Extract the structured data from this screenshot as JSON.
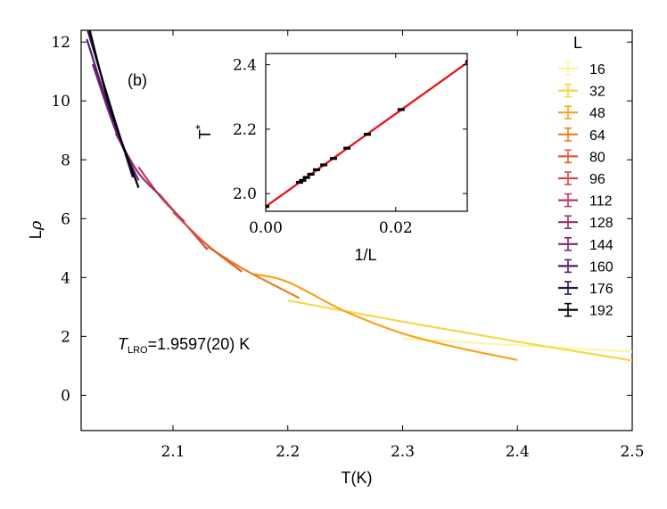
{
  "chart_data": [
    {
      "type": "line",
      "panel_label": "(b)",
      "xlabel": "T(K)",
      "ylabel_base": "L",
      "ylabel_sup": "ρ",
      "xlim": [
        2.02,
        2.5
      ],
      "ylim": [
        -1.2,
        12.4
      ],
      "xticks": [
        2.1,
        2.2,
        2.3,
        2.4,
        2.5
      ],
      "xtick_labels": [
        "2.1",
        "2.2",
        "2.3",
        "2.4",
        "2.5"
      ],
      "yticks": [
        0,
        2,
        4,
        6,
        8,
        10,
        12
      ],
      "ytick_labels": [
        "0",
        "2",
        "4",
        "6",
        "8",
        "10",
        "12"
      ],
      "annotation": {
        "symbol": "T",
        "subscript": "LRO",
        "value": "=1.9597(20) K"
      },
      "legend": {
        "title": "L",
        "position": "right"
      },
      "series": [
        {
          "name": "16",
          "color": "#fcf6a8",
          "x": [
            2.3,
            2.5
          ],
          "y": [
            1.92,
            1.48
          ]
        },
        {
          "name": "32",
          "color": "#f6d84a",
          "x": [
            2.2,
            2.3,
            2.4,
            2.5
          ],
          "y": [
            3.22,
            2.5,
            1.82,
            1.18
          ]
        },
        {
          "name": "48",
          "color": "#f8a31c",
          "x": [
            2.17,
            2.2,
            2.25,
            2.3,
            2.35,
            2.4
          ],
          "y": [
            4.12,
            3.85,
            2.85,
            2.1,
            1.6,
            1.2
          ]
        },
        {
          "name": "64",
          "color": "#ef7e1e",
          "x": [
            2.13,
            2.16,
            2.19,
            2.21
          ],
          "y": [
            5.05,
            4.32,
            3.7,
            3.3
          ]
        },
        {
          "name": "80",
          "color": "#e45c2d",
          "x": [
            2.1,
            2.13,
            2.16
          ],
          "y": [
            6.22,
            5.1,
            4.2
          ]
        },
        {
          "name": "96",
          "color": "#d24a45",
          "x": [
            2.09,
            2.11,
            2.13
          ],
          "y": [
            6.75,
            5.85,
            4.95
          ]
        },
        {
          "name": "112",
          "color": "#b93a5f",
          "x": [
            2.07,
            2.09,
            2.11
          ],
          "y": [
            7.75,
            6.7,
            5.9
          ]
        },
        {
          "name": "128",
          "color": "#9a2e6e",
          "x": [
            2.05,
            2.07,
            2.09
          ],
          "y": [
            8.9,
            7.55,
            6.75
          ]
        },
        {
          "name": "144",
          "color": "#772776",
          "x": [
            2.03,
            2.05,
            2.07
          ],
          "y": [
            11.25,
            9.0,
            7.3
          ]
        },
        {
          "name": "160",
          "color": "#521c6e",
          "x": [
            2.025,
            2.045,
            2.065
          ],
          "y": [
            12.1,
            9.65,
            7.65
          ]
        },
        {
          "name": "176",
          "color": "#2a1450",
          "x": [
            2.025,
            2.045,
            2.065
          ],
          "y": [
            12.5,
            9.9,
            7.4
          ]
        },
        {
          "name": "192",
          "color": "#000000",
          "x": [
            2.025,
            2.045,
            2.07
          ],
          "y": [
            12.8,
            9.8,
            7.05
          ]
        }
      ]
    },
    {
      "type": "scatter",
      "title": "",
      "xlabel": "1/L",
      "ylabel": "T",
      "ylabel_sup": "*",
      "xlim": [
        0.0,
        0.031
      ],
      "ylim": [
        1.945,
        2.435
      ],
      "xticks": [
        0.0,
        0.02
      ],
      "xtick_labels": [
        "0.00",
        "0.02"
      ],
      "yticks": [
        2.0,
        2.2,
        2.4
      ],
      "ytick_labels": [
        "2.0",
        "2.2",
        "2.4"
      ],
      "fit_line": {
        "color": "#e8191e",
        "x": [
          0.0,
          0.03125
        ],
        "y": [
          1.9597,
          2.41
        ]
      },
      "points": {
        "color": "#000000",
        "x": [
          0.0,
          0.00521,
          0.00568,
          0.00625,
          0.00694,
          0.00781,
          0.00893,
          0.01042,
          0.0125,
          0.01563,
          0.02083,
          0.03125
        ],
        "y": [
          1.9597,
          2.035,
          2.041,
          2.05,
          2.06,
          2.074,
          2.089,
          2.109,
          2.141,
          2.184,
          2.261,
          2.41
        ]
      }
    }
  ]
}
